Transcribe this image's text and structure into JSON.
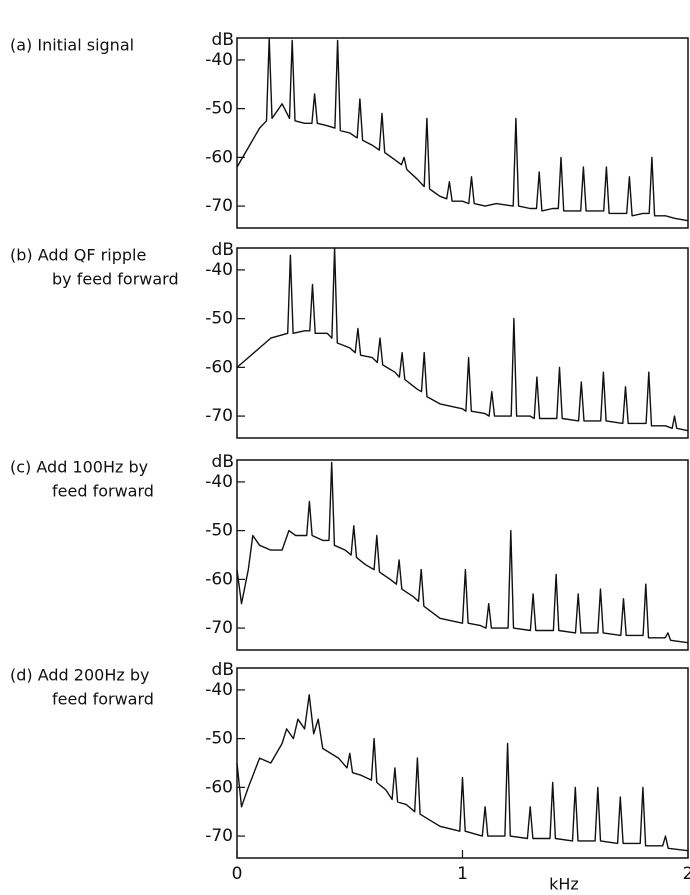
{
  "chart_data": [
    {
      "type": "line",
      "title_lines": [
        "(a)  Initial signal"
      ],
      "ylabel": "dB",
      "color": "#111111",
      "xlim": [
        0,
        2
      ],
      "ylim": [
        -74.5,
        -35.5
      ],
      "yticks": [
        -40,
        -50,
        -60,
        -70
      ],
      "x": [
        0,
        0.05,
        0.1,
        0.131,
        0.143,
        0.155,
        0.2,
        0.233,
        0.245,
        0.257,
        0.3,
        0.332,
        0.344,
        0.356,
        0.4,
        0.434,
        0.446,
        0.458,
        0.5,
        0.533,
        0.545,
        0.557,
        0.6,
        0.631,
        0.643,
        0.655,
        0.7,
        0.729,
        0.741,
        0.753,
        0.8,
        0.83,
        0.842,
        0.854,
        0.9,
        0.93,
        0.942,
        0.954,
        1.0,
        1.028,
        1.04,
        1.052,
        1.1,
        1.15,
        1.225,
        1.237,
        1.249,
        1.3,
        1.328,
        1.34,
        1.352,
        1.4,
        1.425,
        1.437,
        1.449,
        1.5,
        1.524,
        1.536,
        1.548,
        1.6,
        1.626,
        1.638,
        1.65,
        1.7,
        1.728,
        1.74,
        1.752,
        1.8,
        1.828,
        1.84,
        1.852,
        1.9,
        1.94,
        2.0
      ],
      "values": [
        -62,
        -58,
        -54,
        -52.5,
        -35.5,
        -52,
        -49,
        -52,
        -36,
        -52.5,
        -53,
        -53,
        -47,
        -53,
        -53.5,
        -54,
        -36,
        -54.5,
        -55,
        -56,
        -48,
        -56.5,
        -57.5,
        -58.5,
        -51,
        -59,
        -60.5,
        -61.5,
        -60,
        -62.5,
        -64.5,
        -66,
        -52,
        -66.5,
        -68,
        -68.5,
        -65,
        -69,
        -69,
        -69.5,
        -64,
        -69.5,
        -70,
        -69.5,
        -70,
        -52,
        -70,
        -70.5,
        -70.5,
        -63,
        -71,
        -70.5,
        -70.5,
        -60,
        -71,
        -71,
        -71,
        -62,
        -71,
        -71,
        -71,
        -62,
        -71.5,
        -71.5,
        -71.5,
        -64,
        -72,
        -71.5,
        -71.5,
        -60,
        -72,
        -72,
        -72.5,
        -73
      ]
    },
    {
      "type": "line",
      "title_lines": [
        "(b)  Add QF ripple",
        "by feed forward"
      ],
      "ylabel": "dB",
      "color": "#111111",
      "xlim": [
        0,
        2
      ],
      "ylim": [
        -74.5,
        -35.5
      ],
      "yticks": [
        -40,
        -50,
        -60,
        -70
      ],
      "x": [
        0,
        0.05,
        0.1,
        0.15,
        0.225,
        0.237,
        0.249,
        0.3,
        0.323,
        0.335,
        0.347,
        0.4,
        0.421,
        0.433,
        0.445,
        0.5,
        0.524,
        0.536,
        0.548,
        0.6,
        0.622,
        0.634,
        0.646,
        0.7,
        0.72,
        0.732,
        0.744,
        0.8,
        0.818,
        0.83,
        0.842,
        0.9,
        1.0,
        1.015,
        1.027,
        1.039,
        1.1,
        1.118,
        1.13,
        1.142,
        1.216,
        1.228,
        1.24,
        1.3,
        1.318,
        1.33,
        1.342,
        1.418,
        1.43,
        1.442,
        1.515,
        1.527,
        1.539,
        1.613,
        1.625,
        1.637,
        1.711,
        1.723,
        1.735,
        1.814,
        1.826,
        1.838,
        1.9,
        1.93,
        1.94,
        1.95,
        2.0
      ],
      "values": [
        -60,
        -58,
        -56,
        -54,
        -53,
        -37,
        -53,
        -52.5,
        -52.5,
        -43,
        -53,
        -53,
        -54,
        -35.5,
        -55,
        -56,
        -57,
        -52,
        -57.5,
        -58,
        -59,
        -54,
        -59.5,
        -61,
        -62,
        -57,
        -62.5,
        -64.5,
        -65,
        -57,
        -66,
        -67.5,
        -68.5,
        -69,
        -58,
        -69,
        -69.5,
        -70,
        -65,
        -70,
        -70,
        -50,
        -70,
        -70,
        -70.5,
        -62,
        -70.5,
        -70.5,
        -60,
        -70.5,
        -71,
        -63,
        -71,
        -71,
        -61,
        -71,
        -71.5,
        -64,
        -71.5,
        -71.5,
        -61,
        -72,
        -72,
        -72.5,
        -70,
        -72.5,
        -73
      ]
    },
    {
      "type": "line",
      "title_lines": [
        "(c)  Add 100Hz by",
        "feed forward"
      ],
      "ylabel": "dB",
      "color": "#111111",
      "xlim": [
        0,
        2
      ],
      "ylim": [
        -74.5,
        -35.5
      ],
      "yticks": [
        -40,
        -50,
        -60,
        -70
      ],
      "x": [
        0,
        0.02,
        0.05,
        0.07,
        0.1,
        0.15,
        0.2,
        0.23,
        0.26,
        0.309,
        0.321,
        0.333,
        0.38,
        0.408,
        0.42,
        0.432,
        0.48,
        0.506,
        0.518,
        0.53,
        0.57,
        0.608,
        0.62,
        0.632,
        0.68,
        0.707,
        0.719,
        0.731,
        0.78,
        0.805,
        0.817,
        0.829,
        0.9,
        1.0,
        1.013,
        1.025,
        1.08,
        1.104,
        1.116,
        1.128,
        1.202,
        1.214,
        1.226,
        1.301,
        1.313,
        1.325,
        1.403,
        1.415,
        1.427,
        1.501,
        1.513,
        1.525,
        1.6,
        1.612,
        1.624,
        1.702,
        1.714,
        1.726,
        1.801,
        1.813,
        1.825,
        1.899,
        1.911,
        1.923,
        2.0
      ],
      "values": [
        -58,
        -65,
        -58,
        -51,
        -53,
        -54,
        -54,
        -50,
        -51,
        -51,
        -44,
        -51,
        -52,
        -52,
        -36,
        -53,
        -54,
        -55,
        -49,
        -55.5,
        -57,
        -58,
        -51,
        -58.5,
        -60,
        -61,
        -56,
        -62,
        -63.5,
        -64.5,
        -58,
        -65.5,
        -68,
        -69,
        -58,
        -69,
        -69.5,
        -70,
        -65,
        -70,
        -70,
        -50,
        -70,
        -70.5,
        -63,
        -70.5,
        -70.5,
        -59,
        -70.5,
        -71,
        -63,
        -71,
        -71,
        -62,
        -71,
        -71.5,
        -64,
        -71.5,
        -71.5,
        -61,
        -72,
        -72,
        -71,
        -72.5,
        -73
      ]
    },
    {
      "type": "line",
      "title_lines": [
        "(d)  Add 200Hz by",
        "feed forward"
      ],
      "ylabel": "dB",
      "xlabel": "kHz",
      "color": "#111111",
      "xlim": [
        0,
        2
      ],
      "xticks": [
        0,
        1,
        2
      ],
      "ylim": [
        -74.5,
        -35.5
      ],
      "yticks": [
        -40,
        -50,
        -60,
        -70
      ],
      "x": [
        0,
        0.02,
        0.05,
        0.1,
        0.15,
        0.2,
        0.22,
        0.25,
        0.27,
        0.3,
        0.32,
        0.34,
        0.36,
        0.38,
        0.45,
        0.488,
        0.5,
        0.512,
        0.55,
        0.596,
        0.608,
        0.62,
        0.66,
        0.688,
        0.7,
        0.712,
        0.75,
        0.788,
        0.8,
        0.812,
        0.9,
        0.988,
        1.0,
        1.012,
        1.088,
        1.1,
        1.112,
        1.188,
        1.2,
        1.212,
        1.288,
        1.3,
        1.312,
        1.388,
        1.4,
        1.412,
        1.488,
        1.5,
        1.512,
        1.588,
        1.6,
        1.612,
        1.688,
        1.7,
        1.712,
        1.788,
        1.8,
        1.812,
        1.888,
        1.9,
        1.912,
        2.0
      ],
      "values": [
        -55,
        -64,
        -60,
        -54,
        -55,
        -51,
        -48,
        -50,
        -46,
        -48,
        -41,
        -49,
        -46,
        -52,
        -54,
        -56,
        -53,
        -57,
        -57.5,
        -58.5,
        -50,
        -59,
        -60.5,
        -62.5,
        -56,
        -63,
        -63.5,
        -65,
        -54,
        -65.5,
        -68,
        -69,
        -58,
        -69,
        -70,
        -64,
        -70,
        -70,
        -51,
        -70,
        -70.5,
        -64,
        -70.5,
        -70.5,
        -59,
        -70.5,
        -71,
        -60,
        -71,
        -71,
        -60,
        -71,
        -71.5,
        -62,
        -71.5,
        -71.5,
        -60,
        -72,
        -72,
        -70,
        -72.5,
        -73
      ]
    }
  ]
}
